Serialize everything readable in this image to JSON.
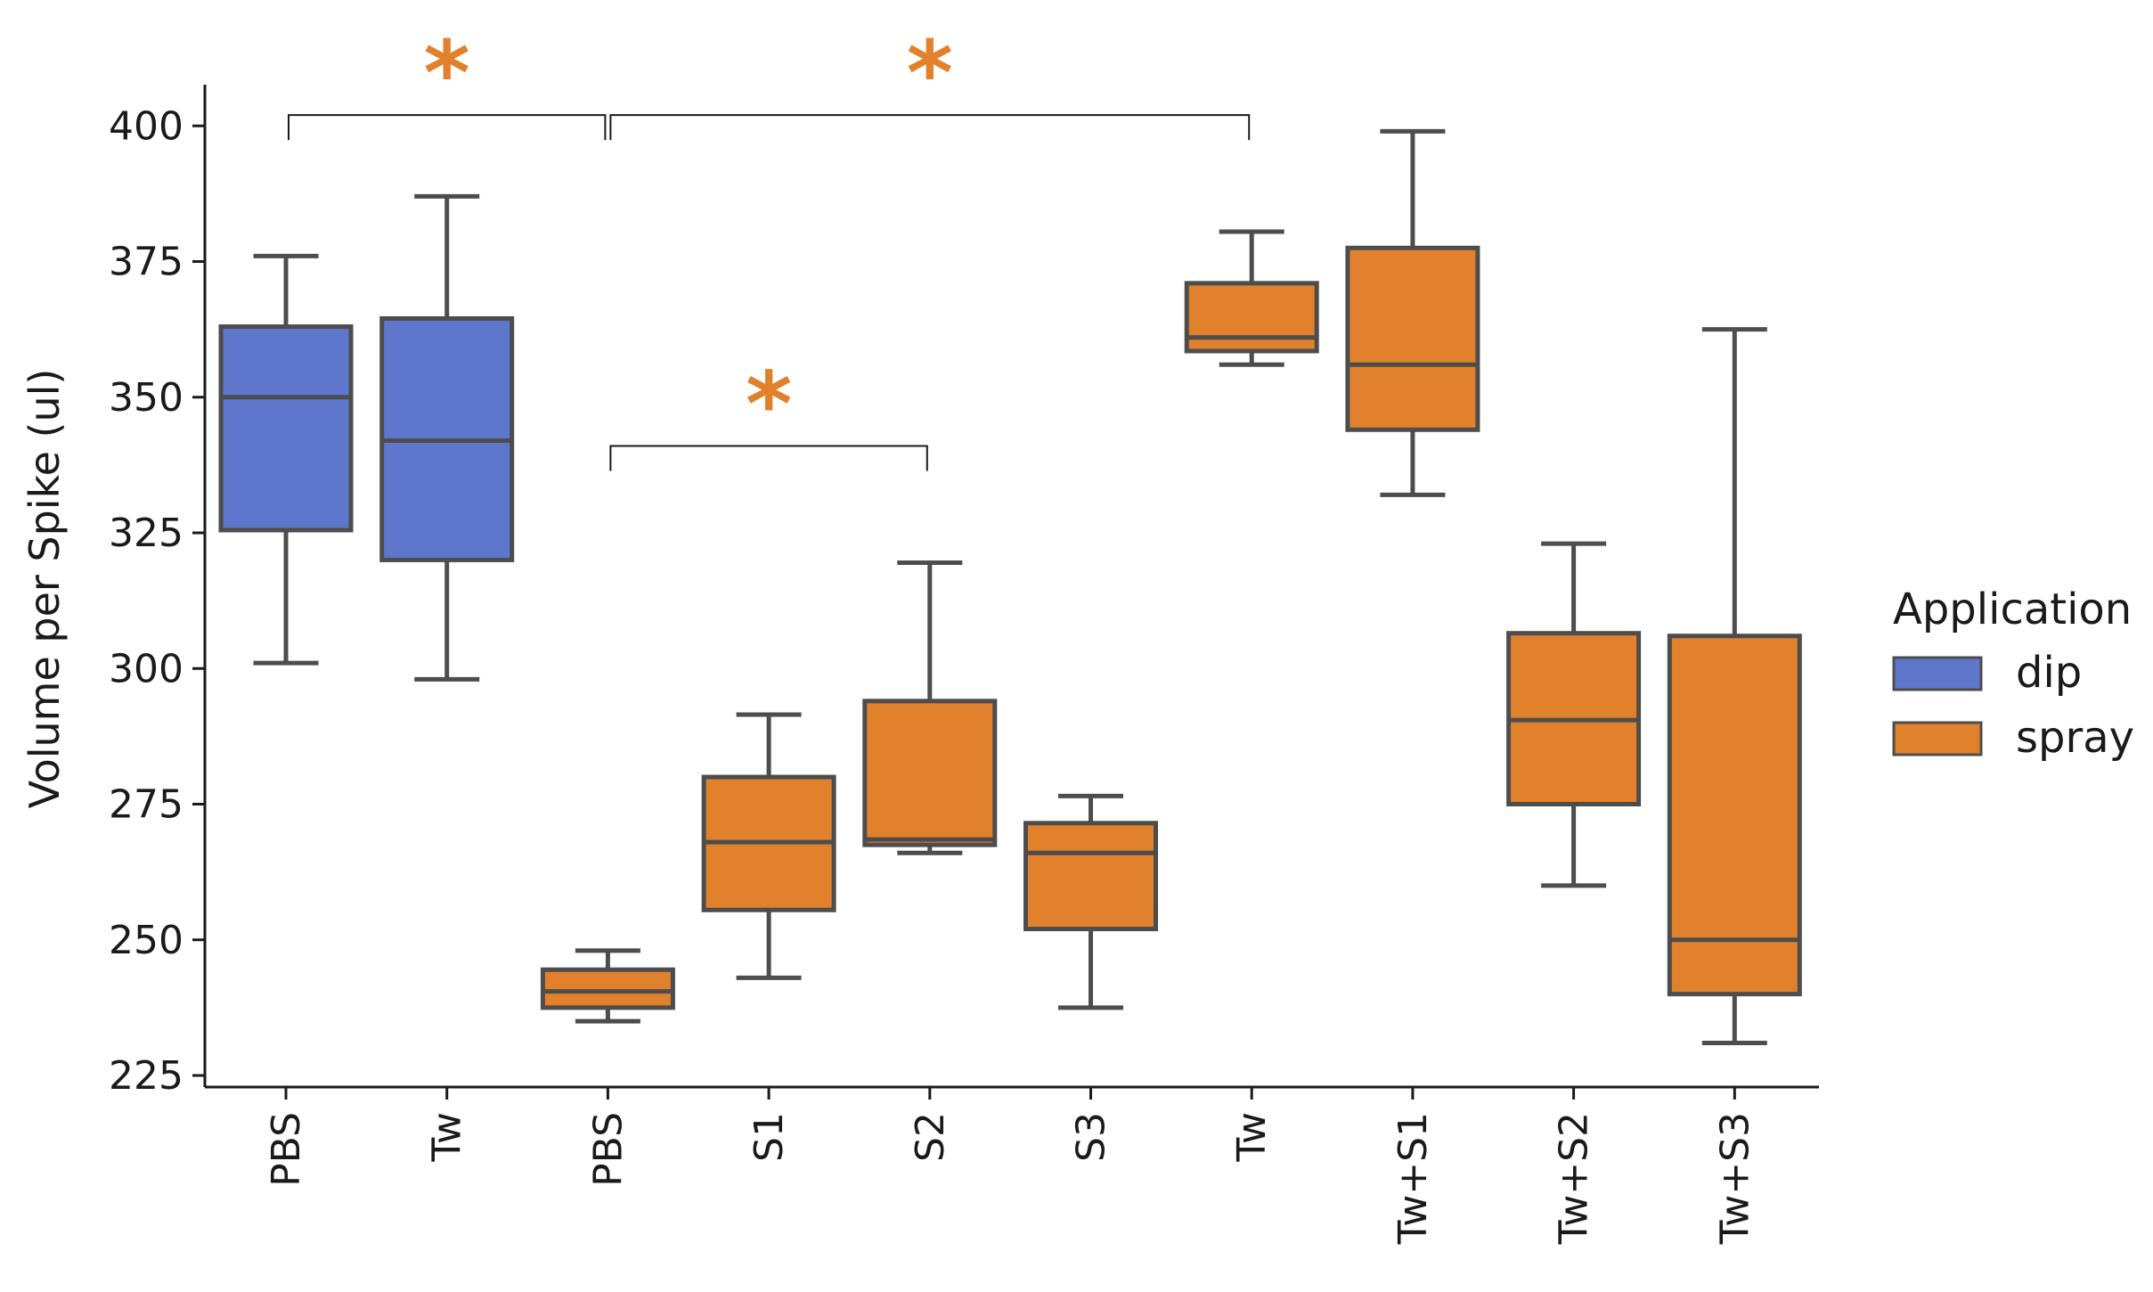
{
  "chart_data": {
    "type": "box",
    "title": "",
    "xlabel": "",
    "ylabel": "Volume per Spike (ul)",
    "ylim": [
      222,
      406
    ],
    "yticks": [
      225,
      250,
      275,
      300,
      325,
      350,
      375,
      400
    ],
    "grid": false,
    "legend": {
      "title": "Application",
      "placement": "right",
      "entries": [
        {
          "label": "dip",
          "color": "#5e76cc"
        },
        {
          "label": "spray",
          "color": "#e1812c"
        }
      ]
    },
    "boxes": [
      {
        "category": "PBS",
        "application": "dip",
        "whisker_low": 301,
        "q1": 325.5,
        "median": 350,
        "q3": 363,
        "whisker_high": 376
      },
      {
        "category": "Tw",
        "application": "dip",
        "whisker_low": 298,
        "q1": 320,
        "median": 342,
        "q3": 364.5,
        "whisker_high": 387
      },
      {
        "category": "PBS",
        "application": "spray",
        "whisker_low": 235,
        "q1": 237.5,
        "median": 240.5,
        "q3": 244.5,
        "whisker_high": 248
      },
      {
        "category": "S1",
        "application": "spray",
        "whisker_low": 243,
        "q1": 255.5,
        "median": 268,
        "q3": 280,
        "whisker_high": 291.5
      },
      {
        "category": "S2",
        "application": "spray",
        "whisker_low": 266,
        "q1": 267.5,
        "median": 268.5,
        "q3": 294,
        "whisker_high": 319.5
      },
      {
        "category": "S3",
        "application": "spray",
        "whisker_low": 237.5,
        "q1": 252,
        "median": 266,
        "q3": 271.5,
        "whisker_high": 276.5
      },
      {
        "category": "Tw",
        "application": "spray",
        "whisker_low": 356,
        "q1": 358.5,
        "median": 361,
        "q3": 371,
        "whisker_high": 380.5
      },
      {
        "category": "Tw+S1",
        "application": "spray",
        "whisker_low": 332,
        "q1": 344,
        "median": 356,
        "q3": 377.5,
        "whisker_high": 399
      },
      {
        "category": "Tw+S2",
        "application": "spray",
        "whisker_low": 260,
        "q1": 275,
        "median": 290.5,
        "q3": 306.5,
        "whisker_high": 323
      },
      {
        "category": "Tw+S3",
        "application": "spray",
        "whisker_low": 231,
        "q1": 240,
        "median": 250,
        "q3": 306,
        "whisker_high": 362.5
      }
    ],
    "annotations": [
      {
        "from": 0,
        "to": 2,
        "y": 402,
        "label": "*"
      },
      {
        "from": 2,
        "to": 6,
        "y": 402,
        "label": "*"
      },
      {
        "from": 2,
        "to": 4,
        "y": 341,
        "label": "*"
      }
    ]
  },
  "colors": {
    "dip": "#5e76cc",
    "spray": "#e1812c",
    "box_edge": "#4d4d4d",
    "star": "#e1812c"
  }
}
